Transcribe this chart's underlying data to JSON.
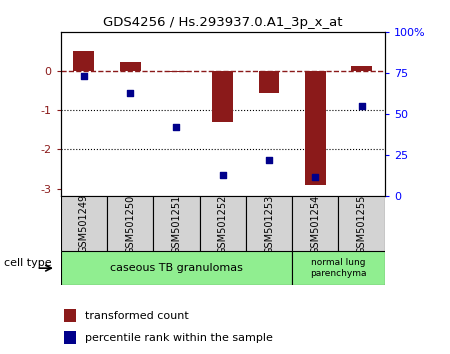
{
  "title": "GDS4256 / Hs.293937.0.A1_3p_x_at",
  "samples": [
    "GSM501249",
    "GSM501250",
    "GSM501251",
    "GSM501252",
    "GSM501253",
    "GSM501254",
    "GSM501255"
  ],
  "transformed_count": [
    0.5,
    0.22,
    -0.03,
    -1.3,
    -0.55,
    -2.9,
    0.12
  ],
  "percentile_rank": [
    73,
    63,
    42,
    13,
    22,
    12,
    55
  ],
  "bar_color": "#8B1A1A",
  "dot_color": "#00008B",
  "ylim_left": [
    -3.2,
    1.0
  ],
  "ylim_right": [
    0,
    100
  ],
  "left_yticks": [
    -3,
    -2,
    -1,
    0
  ],
  "right_yticks": [
    0,
    25,
    50,
    75,
    100
  ],
  "right_tick_labels": [
    "0",
    "25",
    "50",
    "75",
    "100%"
  ],
  "cell_type_groups": [
    {
      "label": "caseous TB granulomas",
      "n_samples": 5,
      "color": "#90EE90"
    },
    {
      "label": "normal lung\nparenchyma",
      "n_samples": 2,
      "color": "#90EE90"
    }
  ],
  "cell_type_label": "cell type",
  "legend_bar_label": "transformed count",
  "legend_dot_label": "percentile rank within the sample",
  "ref_line_y": 0,
  "dotted_lines": [
    -1,
    -2
  ],
  "background_color": "#ffffff"
}
